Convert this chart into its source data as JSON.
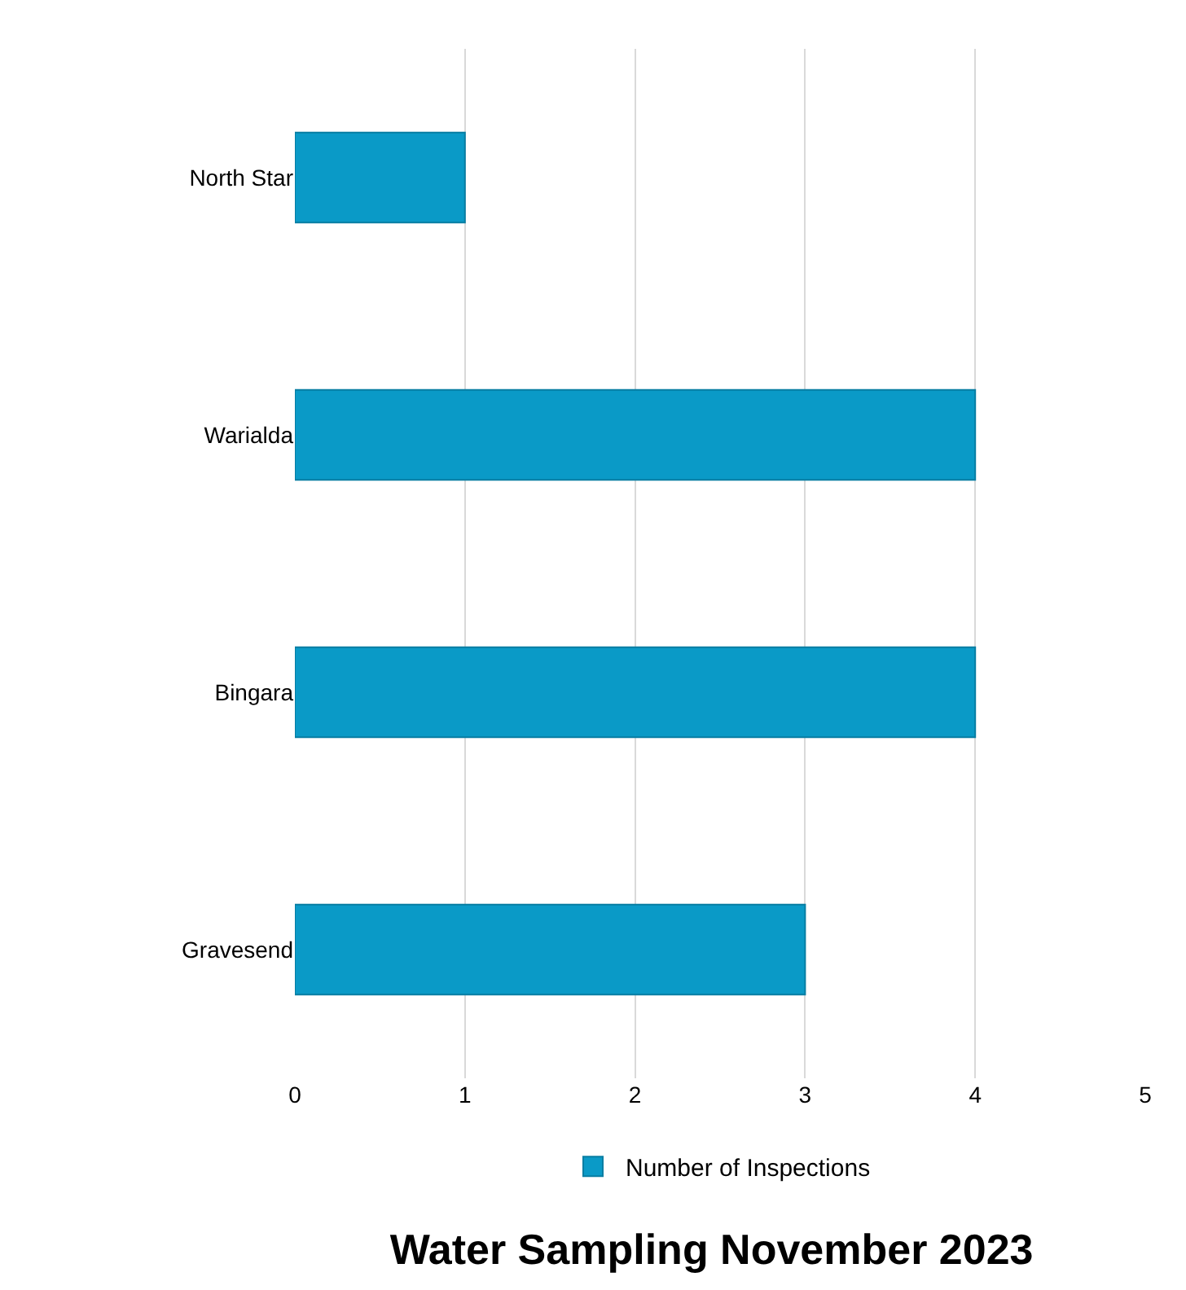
{
  "chart_data": {
    "type": "bar",
    "orientation": "horizontal",
    "title": "Water Sampling November 2023",
    "categories": [
      "North Star",
      "Warialda",
      "Bingara",
      "Gravesend"
    ],
    "series": [
      {
        "name": "Number of Inspections",
        "color": "#0a9ac7",
        "values": [
          1,
          4,
          4,
          3
        ]
      }
    ],
    "xlim": [
      0,
      5
    ],
    "xticks": [
      0,
      1,
      2,
      3,
      4,
      5
    ],
    "grid": "x",
    "legend": "bottom"
  }
}
